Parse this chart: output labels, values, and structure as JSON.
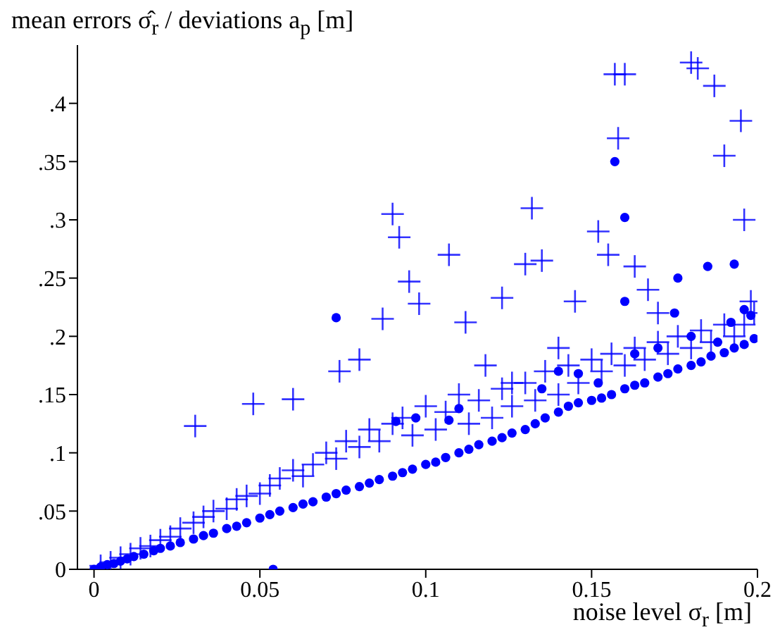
{
  "chart_data": {
    "type": "scatter",
    "xlabel": "noise level σ$_{r}$ [m]",
    "ylabel": "mean errors σ̂$_{r}$ / deviations a$_{p}$ [m]",
    "xlim": [
      -0.005,
      0.2
    ],
    "xticks": [
      0,
      0.05,
      0.1,
      0.15,
      0.2
    ],
    "ylim": [
      0,
      0.45
    ],
    "yticks": [
      0,
      {
        "value": 0.05,
        "label": ".05"
      },
      {
        "value": 0.1,
        "label": ".1"
      },
      {
        "value": 0.15,
        "label": ".15"
      },
      {
        "value": 0.2,
        "label": ".2"
      },
      {
        "value": 0.25,
        "label": ".25"
      },
      {
        "value": 0.3,
        "label": ".3"
      },
      {
        "value": 0.35,
        "label": ".35"
      },
      {
        "value": 0.4,
        "label": ".4"
      }
    ],
    "series": [
      {
        "color": "#0000ff",
        "marker": "cross",
        "x": [
          0.002,
          0.005,
          0.008,
          0.011,
          0.014,
          0.017,
          0.02,
          0.023,
          0.026,
          0.03,
          0.033,
          0.036,
          0.04,
          0.043,
          0.046,
          0.05,
          0.053,
          0.056,
          0.06,
          0.063,
          0.066,
          0.07,
          0.073,
          0.076,
          0.08,
          0.083,
          0.086,
          0.09,
          0.093,
          0.096,
          0.1,
          0.103,
          0.106,
          0.11,
          0.113,
          0.116,
          0.12,
          0.123,
          0.126,
          0.13,
          0.133,
          0.136,
          0.14,
          0.143,
          0.146,
          0.15,
          0.153,
          0.156,
          0.16,
          0.163,
          0.166,
          0.17,
          0.173,
          0.176,
          0.18,
          0.183,
          0.186,
          0.19,
          0.193,
          0.196,
          0.199,
          0.0305,
          0.048,
          0.06,
          0.074,
          0.08,
          0.087,
          0.09,
          0.092,
          0.095,
          0.098,
          0.107,
          0.112,
          0.118,
          0.123,
          0.126,
          0.13,
          0.132,
          0.135,
          0.14,
          0.145,
          0.152,
          0.155,
          0.157,
          0.16,
          0.158,
          0.163,
          0.167,
          0.17,
          0.18,
          0.182,
          0.187,
          0.19,
          0.195,
          0.196,
          0.198
        ],
        "values": [
          0.003,
          0.006,
          0.01,
          0.013,
          0.018,
          0.02,
          0.025,
          0.028,
          0.035,
          0.04,
          0.045,
          0.05,
          0.052,
          0.06,
          0.063,
          0.065,
          0.072,
          0.078,
          0.085,
          0.08,
          0.09,
          0.1,
          0.095,
          0.11,
          0.105,
          0.12,
          0.11,
          0.125,
          0.13,
          0.115,
          0.14,
          0.12,
          0.135,
          0.15,
          0.125,
          0.145,
          0.13,
          0.155,
          0.14,
          0.16,
          0.145,
          0.17,
          0.15,
          0.175,
          0.16,
          0.18,
          0.17,
          0.185,
          0.175,
          0.19,
          0.18,
          0.195,
          0.185,
          0.2,
          0.19,
          0.205,
          0.195,
          0.21,
          0.2,
          0.21,
          0.22,
          0.123,
          0.142,
          0.146,
          0.17,
          0.18,
          0.215,
          0.305,
          0.285,
          0.247,
          0.228,
          0.27,
          0.212,
          0.175,
          0.233,
          0.16,
          0.262,
          0.31,
          0.265,
          0.19,
          0.23,
          0.29,
          0.27,
          0.425,
          0.425,
          0.37,
          0.26,
          0.24,
          0.22,
          0.435,
          0.43,
          0.415,
          0.355,
          0.385,
          0.3,
          0.23
        ]
      },
      {
        "color": "#0000ff",
        "marker": "circle",
        "x": [
          0,
          0.002,
          0.004,
          0.006,
          0.008,
          0.01,
          0.012,
          0.015,
          0.018,
          0.02,
          0.023,
          0.026,
          0.03,
          0.033,
          0.036,
          0.04,
          0.043,
          0.046,
          0.05,
          0.053,
          0.056,
          0.06,
          0.063,
          0.066,
          0.07,
          0.073,
          0.076,
          0.08,
          0.083,
          0.086,
          0.09,
          0.093,
          0.096,
          0.1,
          0.103,
          0.106,
          0.11,
          0.113,
          0.116,
          0.12,
          0.123,
          0.126,
          0.13,
          0.133,
          0.136,
          0.14,
          0.143,
          0.146,
          0.15,
          0.153,
          0.156,
          0.16,
          0.163,
          0.166,
          0.17,
          0.173,
          0.176,
          0.18,
          0.183,
          0.186,
          0.19,
          0.193,
          0.196,
          0.199,
          0.054,
          0.073,
          0.091,
          0.097,
          0.107,
          0.11,
          0.135,
          0.14,
          0.146,
          0.152,
          0.157,
          0.16,
          0.163,
          0.17,
          0.175,
          0.18,
          0.188,
          0.193,
          0.192,
          0.196,
          0.198,
          0.16,
          0.176,
          0.185
        ],
        "values": [
          0,
          0.002,
          0.004,
          0.005,
          0.007,
          0.009,
          0.011,
          0.013,
          0.016,
          0.018,
          0.02,
          0.023,
          0.026,
          0.029,
          0.031,
          0.035,
          0.037,
          0.04,
          0.044,
          0.047,
          0.05,
          0.053,
          0.056,
          0.058,
          0.062,
          0.065,
          0.068,
          0.071,
          0.074,
          0.077,
          0.08,
          0.083,
          0.086,
          0.09,
          0.092,
          0.096,
          0.1,
          0.103,
          0.107,
          0.11,
          0.113,
          0.117,
          0.12,
          0.125,
          0.13,
          0.135,
          0.14,
          0.143,
          0.145,
          0.147,
          0.15,
          0.155,
          0.158,
          0.16,
          0.165,
          0.168,
          0.172,
          0.175,
          0.178,
          0.183,
          0.186,
          0.19,
          0.193,
          0.198,
          0,
          0.216,
          0.127,
          0.13,
          0.128,
          0.138,
          0.155,
          0.17,
          0.168,
          0.16,
          0.35,
          0.302,
          0.185,
          0.19,
          0.22,
          0.2,
          0.195,
          0.262,
          0.212,
          0.223,
          0.218,
          0.23,
          0.25,
          0.26
        ]
      }
    ]
  }
}
